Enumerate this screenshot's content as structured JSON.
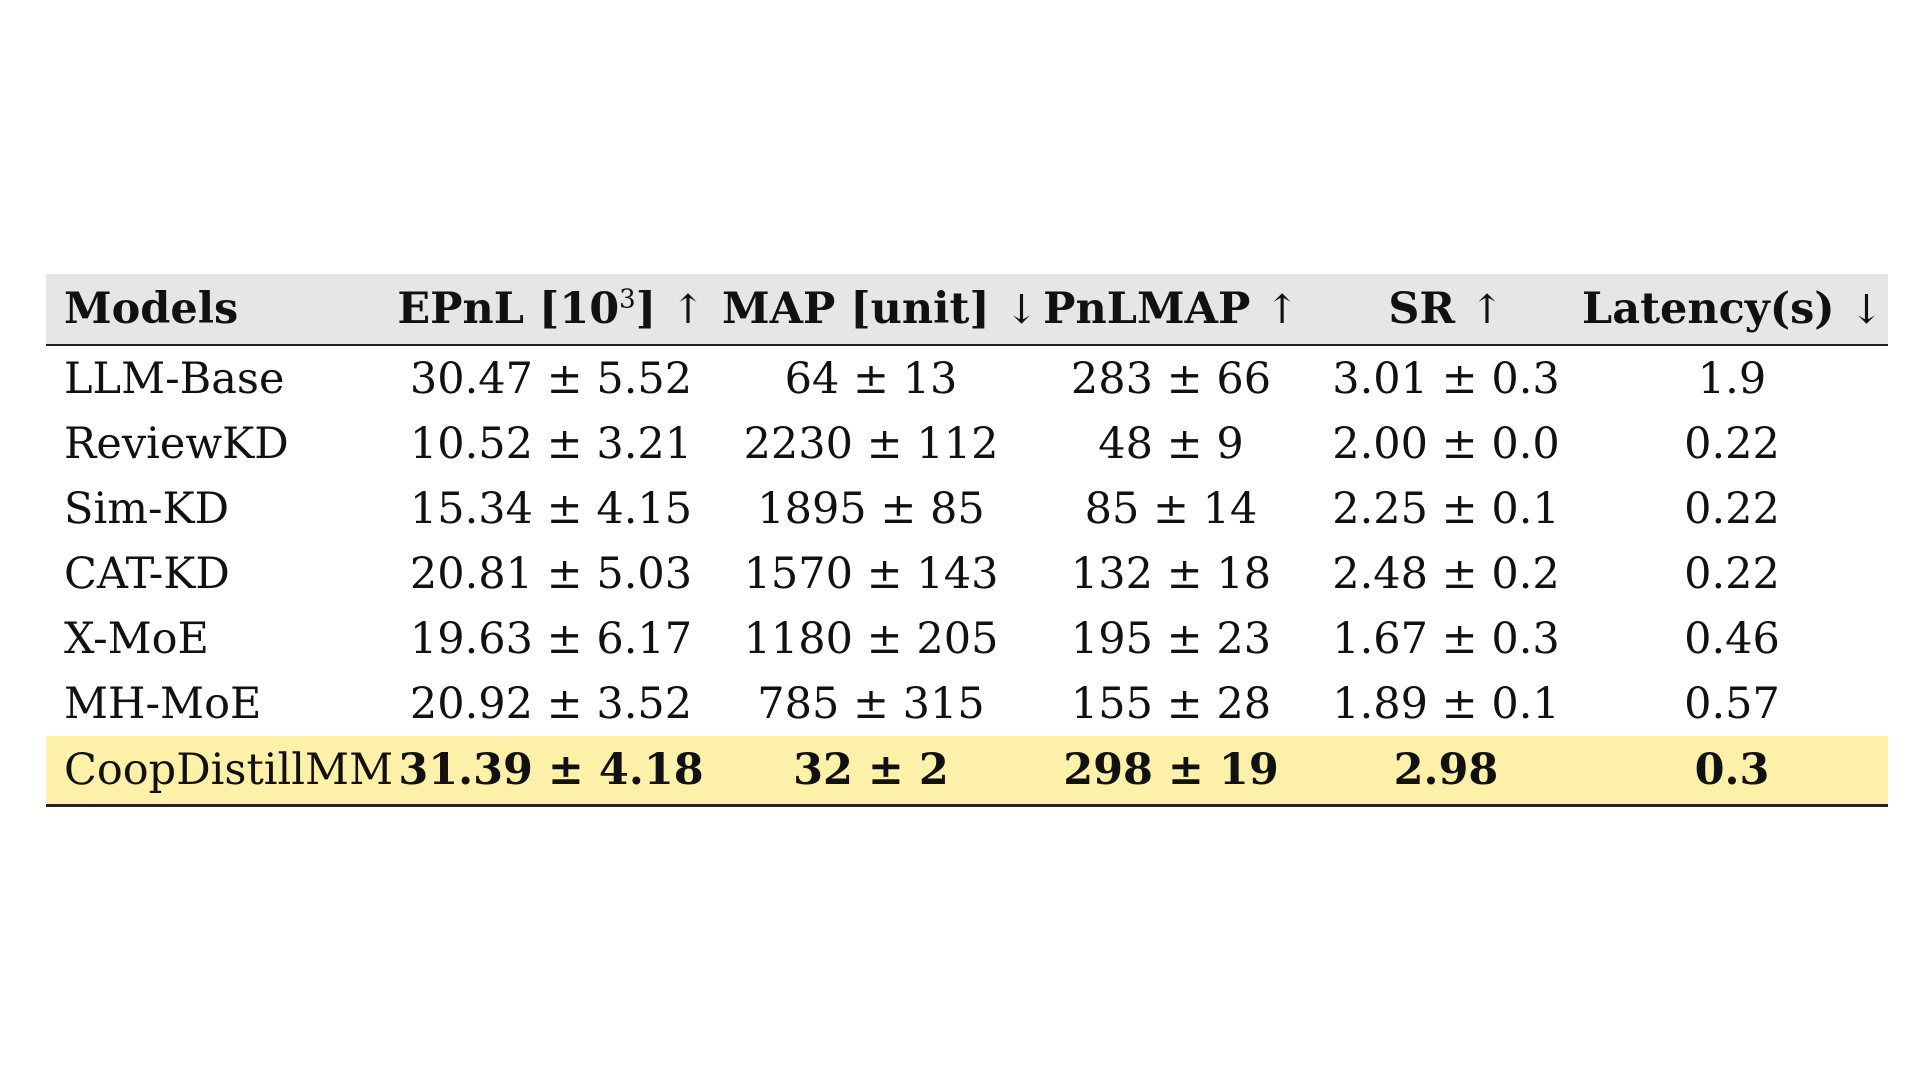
{
  "table": {
    "headers": [
      {
        "label": "Models",
        "arrow": ""
      },
      {
        "label": "EPnL [10",
        "sup": "3",
        "suffix": "]",
        "arrow": "↑"
      },
      {
        "label": "MAP [unit]",
        "arrow": "↓"
      },
      {
        "label": "PnLMAP",
        "arrow": "↑"
      },
      {
        "label": "SR",
        "arrow": "↑"
      },
      {
        "label": "Latency(s)",
        "arrow": "↓"
      }
    ],
    "rows": [
      {
        "model": "LLM-Base",
        "cells": [
          "30.47 ± 5.52",
          "64 ± 13",
          "283 ± 66",
          "3.01 ± 0.3",
          "1.9"
        ]
      },
      {
        "model": "ReviewKD",
        "cells": [
          "10.52 ± 3.21",
          "2230 ± 112",
          "48 ± 9",
          "2.00 ± 0.0",
          "0.22"
        ]
      },
      {
        "model": "Sim-KD",
        "cells": [
          "15.34 ± 4.15",
          "1895 ± 85",
          "85 ± 14",
          "2.25 ± 0.1",
          "0.22"
        ]
      },
      {
        "model": "CAT-KD",
        "cells": [
          "20.81 ± 5.03",
          "1570 ± 143",
          "132 ± 18",
          "2.48 ± 0.2",
          "0.22"
        ]
      },
      {
        "model": "X-MoE",
        "cells": [
          "19.63 ± 6.17",
          "1180 ± 205",
          "195 ± 23",
          "1.67 ± 0.3",
          "0.46"
        ]
      },
      {
        "model": "MH-MoE",
        "cells": [
          "20.92 ± 3.52",
          "785 ± 315",
          "155 ± 28",
          "1.89 ± 0.1",
          "0.57"
        ]
      },
      {
        "model": "CoopDistillMM",
        "cells": [
          "31.39 ± 4.18",
          "32 ± 2",
          "298 ± 19",
          "2.98",
          "0.3"
        ]
      }
    ],
    "highlight_color": "#fdf0a8",
    "header_color": "#e6e6e6"
  }
}
